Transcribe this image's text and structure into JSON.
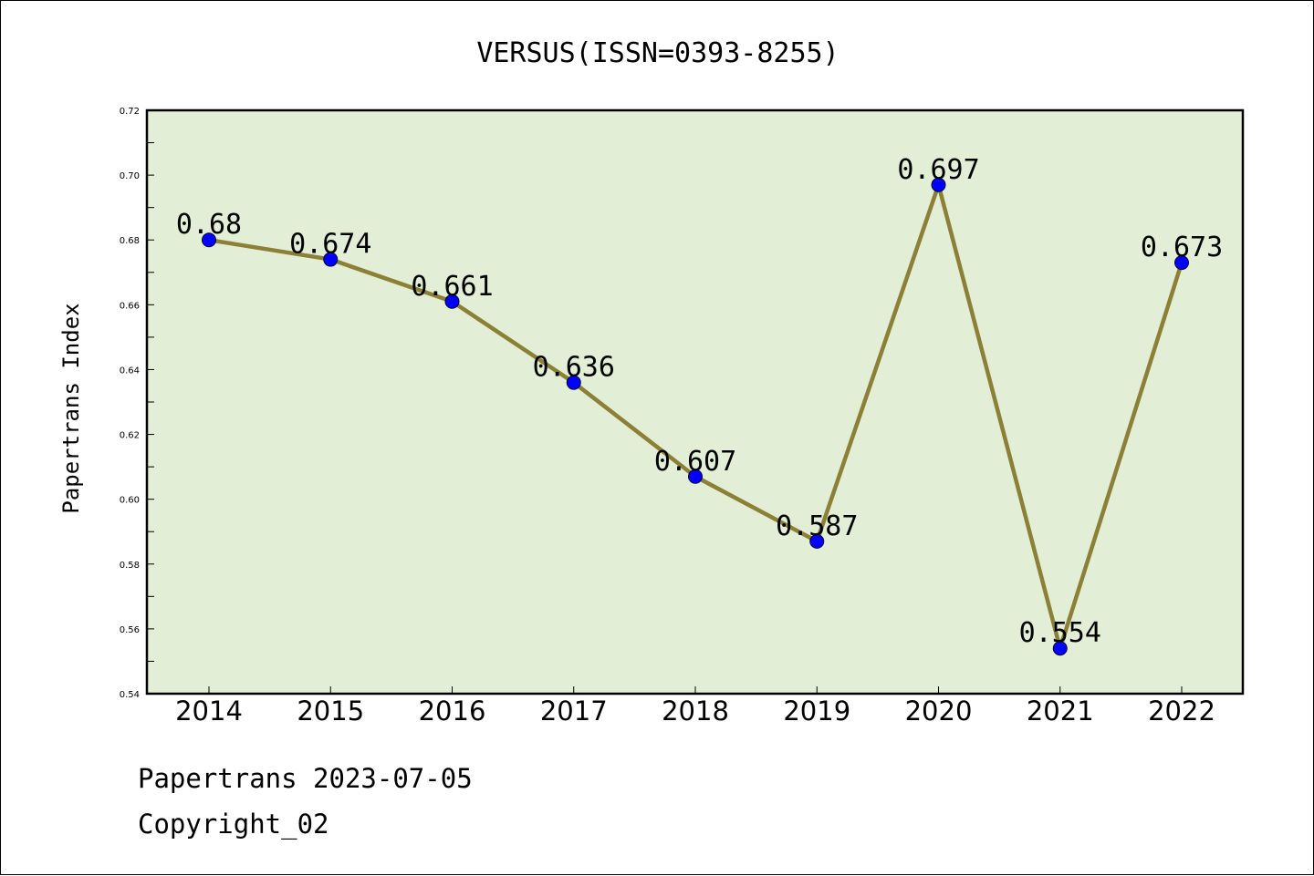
{
  "chart_data": {
    "type": "line",
    "title": "VERSUS(ISSN=0393-8255)",
    "xlabel": "",
    "ylabel": "Papertrans Index",
    "categories": [
      "2014",
      "2015",
      "2016",
      "2017",
      "2018",
      "2019",
      "2020",
      "2021",
      "2022"
    ],
    "series": [
      {
        "values": [
          0.68,
          0.674,
          0.661,
          0.636,
          0.607,
          0.587,
          0.697,
          0.554,
          0.673
        ],
        "labels": [
          "0.68",
          "0.674",
          "0.661",
          "0.636",
          "0.607",
          "0.587",
          "0.697",
          "0.554",
          "0.673"
        ]
      }
    ],
    "ylim": [
      0.54,
      0.72
    ],
    "yticks": [
      "0.54",
      "0.56",
      "0.58",
      "0.60",
      "0.62",
      "0.64",
      "0.66",
      "0.68",
      "0.70",
      "0.72"
    ],
    "grid": false,
    "legend": "none",
    "colors": {
      "plot_background": "#e2efd6",
      "line": "#8b8035",
      "marker": "#0000ff"
    }
  },
  "footer": {
    "line1": "Papertrans 2023-07-05",
    "line2": "Copyright_02"
  }
}
